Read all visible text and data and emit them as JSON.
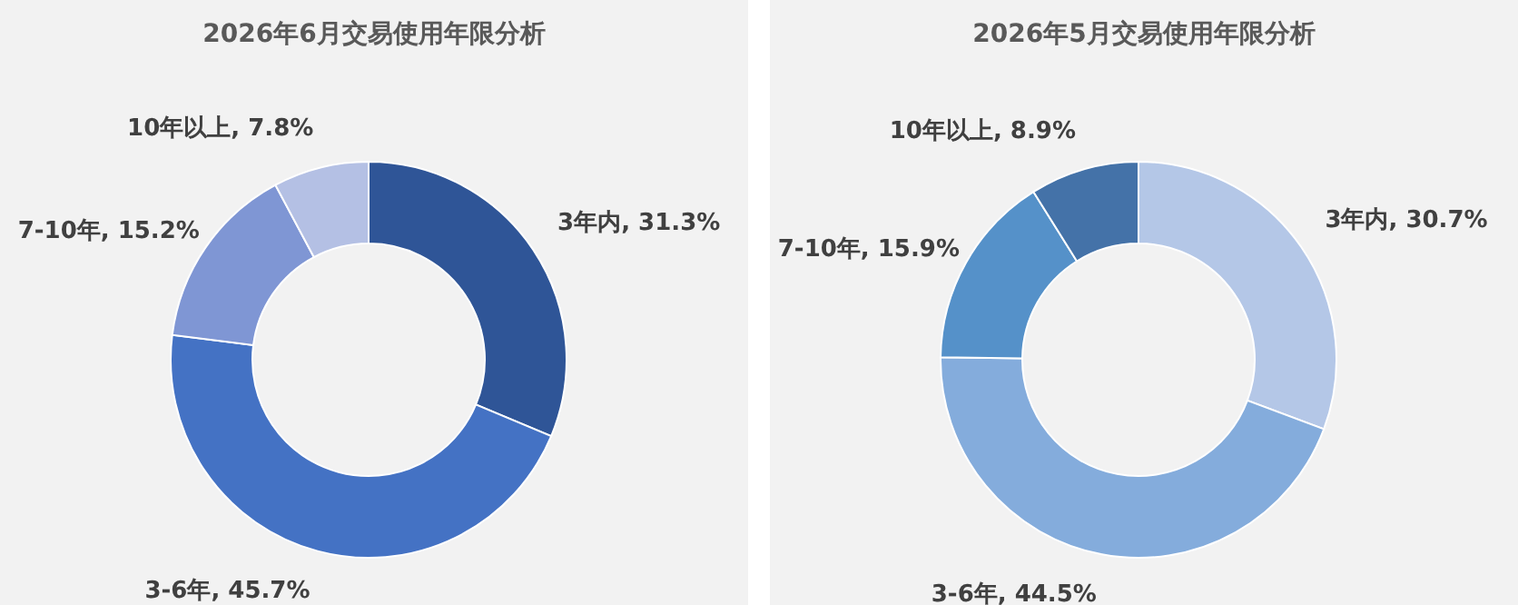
{
  "chart_data": [
    {
      "type": "donut",
      "title": "2026年6月交易使用年限分析",
      "categories": [
        "3年内",
        "3-6年",
        "7-10年",
        "10年以上"
      ],
      "values": [
        31.3,
        45.7,
        15.2,
        7.8
      ],
      "value_labels": [
        "31.3%",
        "45.7%",
        "15.2%",
        "7.8%"
      ],
      "colors": [
        "#2f5597",
        "#4472c4",
        "#7f96d4",
        "#b4c0e4"
      ],
      "legend": false
    },
    {
      "type": "donut",
      "title": "2026年5月交易使用年限分析",
      "categories": [
        "3年内",
        "3-6年",
        "7-10年",
        "10年以上"
      ],
      "values": [
        30.7,
        44.5,
        15.9,
        8.9
      ],
      "value_labels": [
        "30.7%",
        "44.5%",
        "15.9%",
        "8.9%"
      ],
      "colors": [
        "#b4c7e7",
        "#84acdc",
        "#5591c9",
        "#4472a8"
      ],
      "legend": false
    }
  ]
}
